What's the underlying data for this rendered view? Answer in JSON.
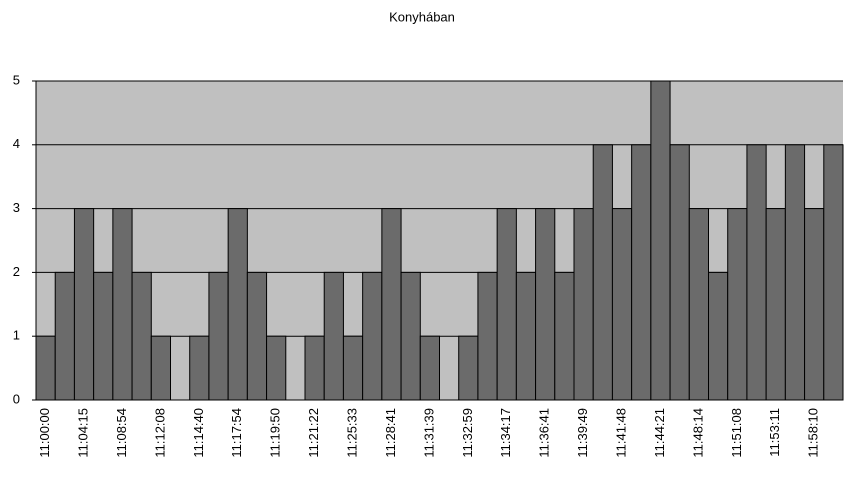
{
  "chart_data": {
    "type": "bar",
    "title": "Konyhában",
    "categories": [
      "11:00:00",
      null,
      "11:04:15",
      null,
      "11:08:54",
      null,
      "11:12:08",
      null,
      "11:14:40",
      null,
      "11:17:54",
      null,
      "11:19:50",
      null,
      "11:21:22",
      null,
      "11:25:33",
      null,
      "11:28:41",
      null,
      "11:31:39",
      null,
      "11:32:59",
      null,
      "11:34:17",
      null,
      "11:36:41",
      null,
      "11:39:49",
      null,
      "11:41:48",
      null,
      "11:44:21",
      null,
      "11:48:14",
      null,
      "11:51:08",
      null,
      "11:53:11",
      null,
      "11:58:10",
      null
    ],
    "values": [
      1,
      2,
      3,
      2,
      3,
      2,
      1,
      0,
      1,
      2,
      3,
      2,
      1,
      0,
      1,
      2,
      1,
      2,
      3,
      2,
      1,
      0,
      1,
      2,
      3,
      2,
      3,
      2,
      3,
      4,
      3,
      4,
      5,
      4,
      3,
      2,
      3,
      4,
      3,
      4,
      3,
      4
    ],
    "color": "#6b6b6b",
    "plot_background": "#c0c0c0",
    "ylim": [
      0,
      5
    ],
    "yticks": [
      0,
      1,
      2,
      3,
      4,
      5
    ],
    "grid": true
  }
}
